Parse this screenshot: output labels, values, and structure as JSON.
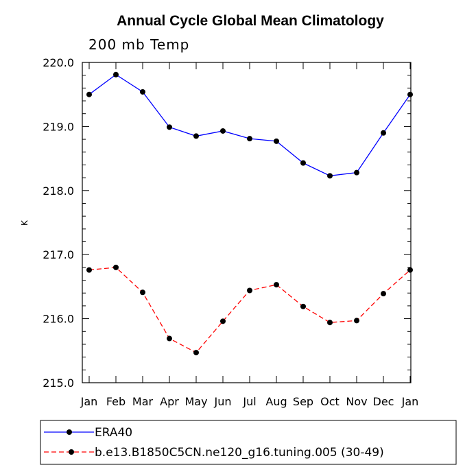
{
  "chart_data": {
    "type": "line",
    "title": "Annual Cycle Global Mean Climatology",
    "subtitle": "200 mb Temp",
    "xlabel": "",
    "ylabel": "K",
    "categories": [
      "Jan",
      "Feb",
      "Mar",
      "Apr",
      "May",
      "Jun",
      "Jul",
      "Aug",
      "Sep",
      "Oct",
      "Nov",
      "Dec",
      "Jan"
    ],
    "ylim": [
      215.0,
      220.0
    ],
    "yticks": [
      "215.0",
      "216.0",
      "217.0",
      "218.0",
      "219.0",
      "220.0"
    ],
    "grid": false,
    "legend_position": "bottom",
    "series": [
      {
        "name": "ERA40",
        "color": "#0000ff",
        "dash": "solid",
        "marker": "filled-circle",
        "values": [
          219.5,
          219.81,
          219.54,
          218.99,
          218.85,
          218.93,
          218.81,
          218.77,
          218.43,
          218.23,
          218.28,
          218.9,
          219.5
        ]
      },
      {
        "name": "b.e13.B1850C5CN.ne120_g16.tuning.005 (30-49)",
        "color": "#ff0000",
        "dash": "dashed",
        "marker": "filled-circle",
        "values": [
          216.76,
          216.8,
          216.41,
          215.69,
          215.47,
          215.96,
          216.44,
          216.53,
          216.19,
          215.94,
          215.97,
          216.39,
          216.76
        ]
      }
    ]
  }
}
